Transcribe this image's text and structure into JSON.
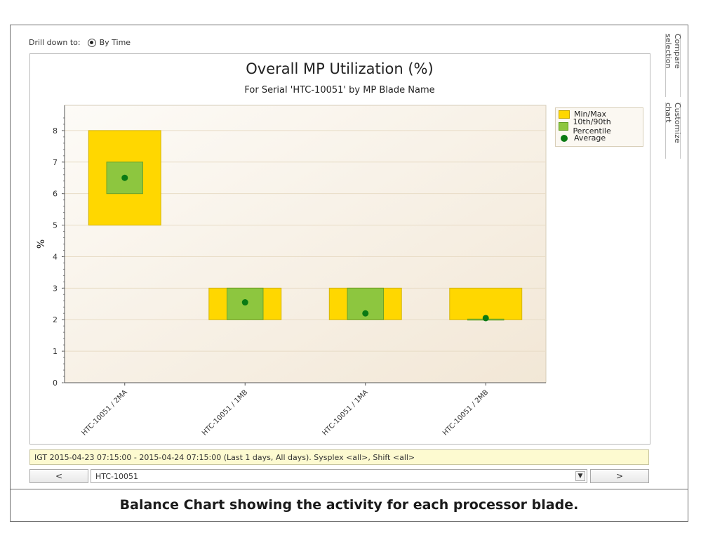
{
  "toolbar": {
    "drill_label": "Drill down to:",
    "drill_option": "By Time"
  },
  "side_tabs": {
    "compare": "Compare selection",
    "customize": "Customize chart"
  },
  "chart_data": {
    "type": "bar",
    "title": "Overall MP Utilization (%)",
    "subtitle": "For Serial 'HTC-10051' by MP Blade Name",
    "xlabel": "",
    "ylabel": "%",
    "ylim": [
      0,
      8.8
    ],
    "yticks": [
      0,
      1,
      2,
      3,
      4,
      5,
      6,
      7,
      8
    ],
    "categories": [
      "HTC-10051 / 2MA",
      "HTC-10051 / 1MB",
      "HTC-10051 / 1MA",
      "HTC-10051 / 2MB"
    ],
    "series": [
      {
        "name": "Min/Max",
        "color": "#ffd700",
        "min": [
          5,
          2,
          2,
          2
        ],
        "max": [
          8,
          3,
          3,
          3
        ]
      },
      {
        "name": "10th/90th Percentile",
        "color": "#8dc63f",
        "low": [
          6,
          2,
          2,
          2
        ],
        "high": [
          7,
          3,
          3,
          2.02
        ]
      },
      {
        "name": "Average",
        "color": "#0a7a14",
        "values": [
          6.5,
          2.55,
          2.2,
          2.05
        ]
      }
    ],
    "grid": true,
    "legend": "top-right"
  },
  "info_bar": "IGT 2015-04-23 07:15:00 - 2015-04-24 07:15:00 (Last 1 days, All days). Sysplex <all>, Shift <all>",
  "nav": {
    "prev": "<",
    "next": ">",
    "serial_value": "HTC-10051"
  },
  "caption": "Balance Chart showing the activity for each processor blade."
}
